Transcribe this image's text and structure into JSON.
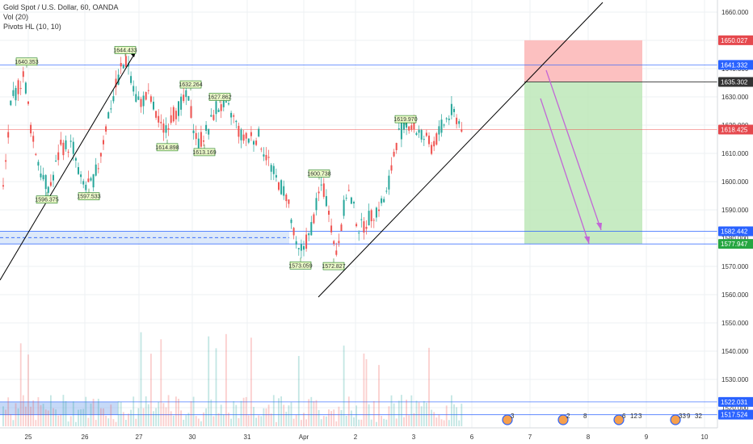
{
  "legend": {
    "title": "Gold Spot / U.S. Dollar, 60, OANDA",
    "volume": "Vol (20)",
    "pivots": "Pivots HL (10, 10)"
  },
  "colors": {
    "up": "#26a69a",
    "down": "#ef5350",
    "blue_line": "#2962ff",
    "trend_line": "#000000",
    "target_zone": "#b9e6b4",
    "stop_zone": "#fcb9b9",
    "arrow": "#c266d6"
  },
  "chart_data": {
    "type": "candlestick",
    "symbol": "Gold Spot / U.S. Dollar",
    "timeframe": "60",
    "source": "OANDA",
    "y_axis": {
      "ticks": [
        1520.0,
        1530.0,
        1540.0,
        1550.0,
        1560.0,
        1570.0,
        1580.0,
        1590.0,
        1600.0,
        1610.0,
        1620.0,
        1630.0,
        1640.0,
        1650.0,
        1660.0
      ],
      "tick_labels": [
        "1520.000",
        "1530.000",
        "1540.000",
        "1550.000",
        "1560.000",
        "1570.000",
        "1580.000",
        "1590.000",
        "1600.000",
        "1610.000",
        "1620.000",
        "1630.000",
        "1640.000",
        "1650.000",
        "1660.000"
      ]
    },
    "x_axis": {
      "labels": [
        "25",
        "26",
        "27",
        "30",
        "31",
        "Apr",
        "2",
        "3",
        "6",
        "7",
        "8",
        "9",
        "10"
      ]
    },
    "price_tags": [
      {
        "value": "1650.027",
        "style": "red"
      },
      {
        "value": "1641.332",
        "style": "blue"
      },
      {
        "value": "1635.302",
        "style": "dark"
      },
      {
        "value": "1618.425",
        "style": "red"
      },
      {
        "value": "1582.442",
        "style": "blue"
      },
      {
        "value": "1577.947",
        "style": "green"
      },
      {
        "value": "1522.031",
        "style": "blue"
      },
      {
        "value": "1517.524",
        "style": "blue"
      }
    ],
    "pivot_labels": [
      {
        "text": "1640.353",
        "price": 1640.353,
        "kind": "high"
      },
      {
        "text": "1644.433",
        "price": 1644.433,
        "kind": "high"
      },
      {
        "text": "1632.264",
        "price": 1632.264,
        "kind": "high"
      },
      {
        "text": "1627.862",
        "price": 1627.862,
        "kind": "high"
      },
      {
        "text": "1619.970",
        "price": 1619.97,
        "kind": "high"
      },
      {
        "text": "1600.738",
        "price": 1600.738,
        "kind": "high"
      },
      {
        "text": "1596.375",
        "price": 1596.375,
        "kind": "low"
      },
      {
        "text": "1597.533",
        "price": 1597.533,
        "kind": "low"
      },
      {
        "text": "1614.898",
        "price": 1614.898,
        "kind": "low"
      },
      {
        "text": "1613.169",
        "price": 1613.169,
        "kind": "low"
      },
      {
        "text": "1573.059",
        "price": 1573.059,
        "kind": "low"
      },
      {
        "text": "1572.827",
        "price": 1572.827,
        "kind": "low"
      }
    ],
    "event_counts": [
      "3",
      "2",
      "8",
      "6",
      "12",
      "3",
      "33",
      "9",
      "32"
    ]
  }
}
